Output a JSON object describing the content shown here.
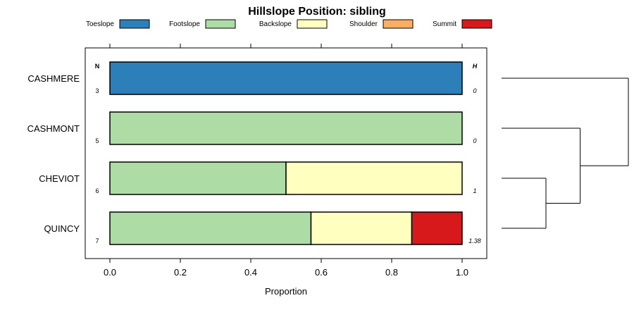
{
  "chart_data": {
    "type": "bar",
    "orientation": "horizontal",
    "stacked": true,
    "title": "Hillslope Position: sibling",
    "xlabel": "Proportion",
    "ylabel": "",
    "xlim": [
      0,
      1
    ],
    "xticks": [
      "0.0",
      "0.2",
      "0.4",
      "0.6",
      "0.8",
      "1.0"
    ],
    "legend": [
      {
        "name": "Toeslope",
        "color": "#2C7FB8"
      },
      {
        "name": "Footslope",
        "color": "#ADDDA4"
      },
      {
        "name": "Backslope",
        "color": "#FFFFBF"
      },
      {
        "name": "Shoulder",
        "color": "#FDAE61"
      },
      {
        "name": "Summit",
        "color": "#D7191C"
      }
    ],
    "n_header": "N",
    "h_header": "H",
    "categories": [
      "CASHMERE",
      "CASHMONT",
      "CHEVIOT",
      "QUINCY"
    ],
    "n": [
      "3",
      "5",
      "6",
      "7"
    ],
    "h": [
      "0",
      "0",
      "1",
      "1.38"
    ],
    "series": [
      {
        "name": "Toeslope",
        "values": [
          1.0,
          0.0,
          0.0,
          0.0
        ]
      },
      {
        "name": "Footslope",
        "values": [
          0.0,
          1.0,
          0.5,
          0.571
        ]
      },
      {
        "name": "Backslope",
        "values": [
          0.0,
          0.0,
          0.5,
          0.286
        ]
      },
      {
        "name": "Shoulder",
        "values": [
          0.0,
          0.0,
          0.0,
          0.0
        ]
      },
      {
        "name": "Summit",
        "values": [
          0.0,
          0.0,
          0.0,
          0.143
        ]
      }
    ],
    "dendrogram": {
      "leaves": [
        "CASHMERE",
        "CASHMONT",
        "CHEVIOT",
        "QUINCY"
      ],
      "merges": [
        [
          2,
          3,
          0.35
        ],
        [
          1,
          "m0",
          0.62
        ],
        [
          0,
          "m1",
          1.0
        ]
      ]
    }
  }
}
